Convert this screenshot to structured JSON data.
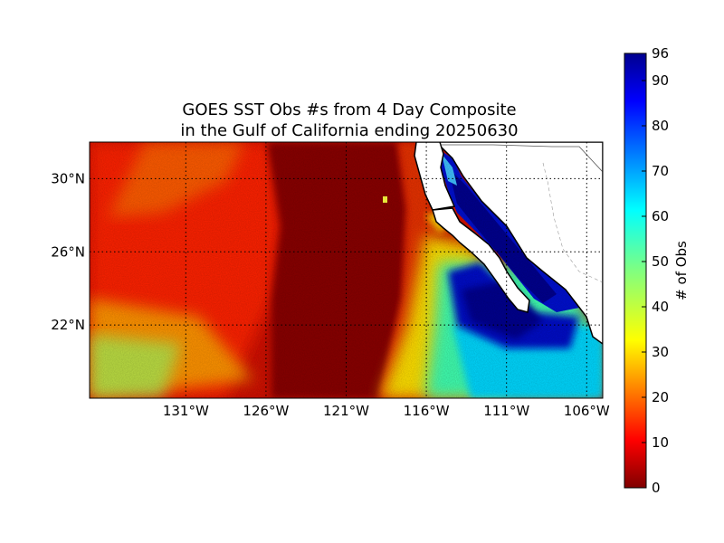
{
  "title": [
    "GOES SST Obs #s from 4 Day Composite",
    "in the Gulf of California ending 20250630"
  ],
  "map": {
    "lon_range": [
      -137,
      -105
    ],
    "lat_range": [
      18,
      32
    ],
    "lon_ticks": [
      {
        "value": -131,
        "label": "131°W"
      },
      {
        "value": -126,
        "label": "126°W"
      },
      {
        "value": -121,
        "label": "121°W"
      },
      {
        "value": -116,
        "label": "116°W"
      },
      {
        "value": -111,
        "label": "111°W"
      },
      {
        "value": -106,
        "label": "106°W"
      }
    ],
    "lat_ticks": [
      {
        "value": 22,
        "label": "22°N"
      },
      {
        "value": 26,
        "label": "26°N"
      },
      {
        "value": 30,
        "label": "30°N"
      }
    ],
    "grid": "dotted"
  },
  "colorbar": {
    "label": "# of Obs",
    "min": 0,
    "max": 96,
    "ticks": [
      {
        "value": 0,
        "label": "0"
      },
      {
        "value": 10,
        "label": "10"
      },
      {
        "value": 20,
        "label": "20"
      },
      {
        "value": 30,
        "label": "30"
      },
      {
        "value": 40,
        "label": "40"
      },
      {
        "value": 50,
        "label": "50"
      },
      {
        "value": 60,
        "label": "60"
      },
      {
        "value": 70,
        "label": "70"
      },
      {
        "value": 80,
        "label": "80"
      },
      {
        "value": 90,
        "label": "90"
      },
      {
        "value": 96,
        "label": "96"
      }
    ],
    "colormap": "jet"
  },
  "colors": {
    "land": "#ffffff",
    "coast": "#000000",
    "low_obs": "#800000",
    "high_obs": "#00008f"
  }
}
